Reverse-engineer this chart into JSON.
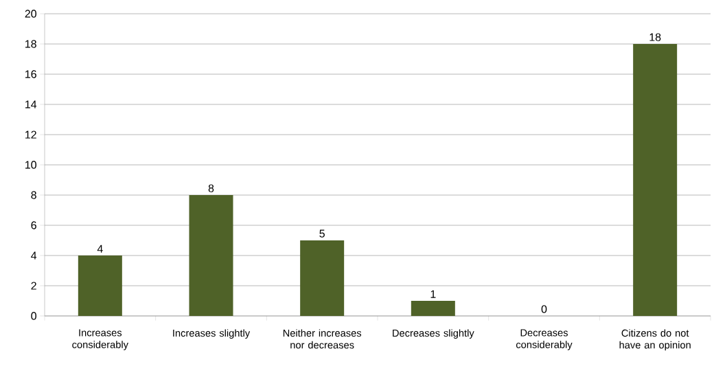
{
  "chart_data": {
    "type": "bar",
    "categories": [
      "Increases considerably",
      "Increases slightly",
      "Neither increases nor decreases",
      "Decreases slightly",
      "Decreases considerably",
      "Citizens do not have an opinion"
    ],
    "values": [
      4,
      8,
      5,
      1,
      0,
      18
    ],
    "color": "#4f6228",
    "ylim": [
      0,
      20
    ],
    "yticks": [
      0,
      2,
      4,
      6,
      8,
      10,
      12,
      14,
      16,
      18,
      20
    ],
    "grid": "y",
    "data_labels": true
  }
}
